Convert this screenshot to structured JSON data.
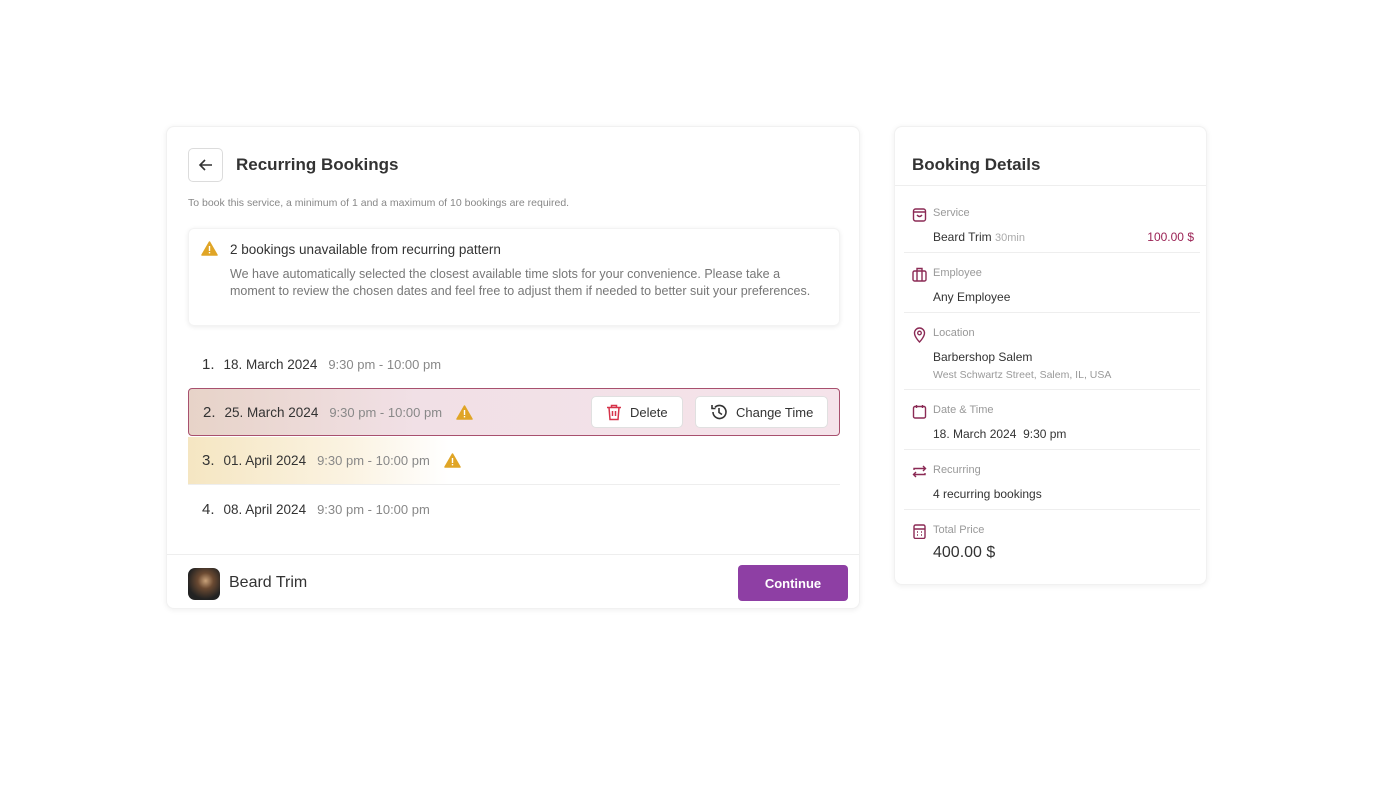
{
  "recurring": {
    "title": "Recurring Bookings",
    "requirement": "To book this service, a minimum of 1 and a maximum of 10 bookings are required.",
    "alert": {
      "heading": "2 bookings unavailable from recurring pattern",
      "body": "We have automatically selected the closest available time slots for your convenience. Please take a moment to review the chosen dates and feel free to adjust them if needed to better suit your preferences.",
      "icon": "warning-icon"
    },
    "bookings": [
      {
        "num": "1.",
        "date": "18. March 2024",
        "time": "9:30 pm - 10:00 pm"
      },
      {
        "num": "2.",
        "date": "25. March 2024",
        "time": "9:30 pm - 10:00 pm",
        "warning": true,
        "selected": true
      },
      {
        "num": "3.",
        "date": "01. April 2024",
        "time": "9:30 pm - 10:00 pm",
        "warning": true
      },
      {
        "num": "4.",
        "date": "08. April 2024",
        "time": "9:30 pm - 10:00 pm"
      }
    ],
    "delete_label": "Delete",
    "change_time_label": "Change Time",
    "footer": {
      "service": "Beard Trim",
      "continue_label": "Continue"
    }
  },
  "details": {
    "title": "Booking Details",
    "service": {
      "label": "Service",
      "name": "Beard Trim",
      "duration": "30min",
      "price": "100.00 $"
    },
    "employee": {
      "label": "Employee",
      "value": "Any Employee"
    },
    "location": {
      "label": "Location",
      "name": "Barbershop Salem",
      "address": "West Schwartz Street, Salem, IL, USA"
    },
    "datetime": {
      "label": "Date & Time",
      "date": "18. March 2024",
      "time": "9:30 pm"
    },
    "recurring": {
      "label": "Recurring",
      "value": "4 recurring bookings"
    },
    "total": {
      "label": "Total Price",
      "value": "400.00 $"
    }
  },
  "colors": {
    "accent": "#8e3fa4",
    "icon": "#8b2a55",
    "warning": "#e0a526",
    "delete": "#d6334a"
  }
}
